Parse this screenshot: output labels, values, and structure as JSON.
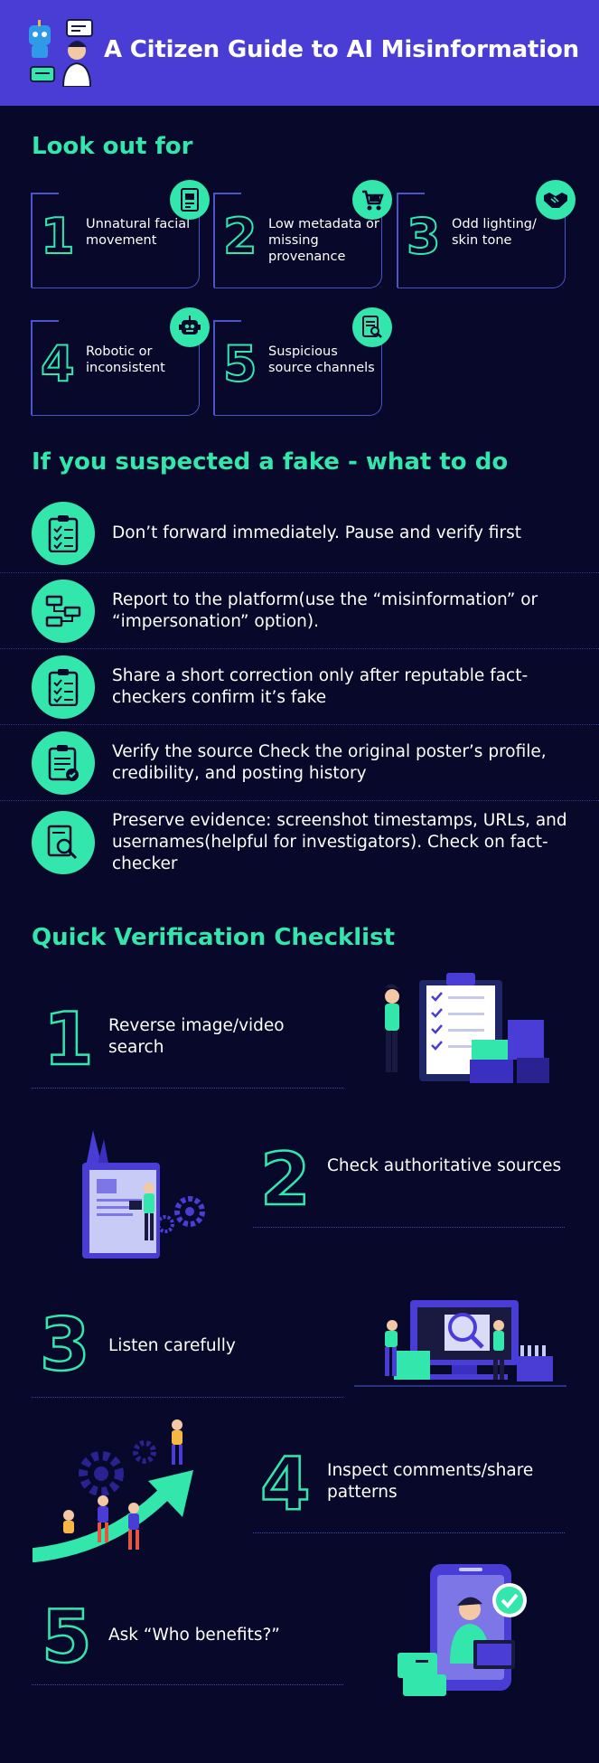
{
  "header": {
    "title": "A Citizen Guide to AI Misinformation"
  },
  "look_out": {
    "title": "Look out for",
    "cards": [
      {
        "num": "1",
        "label": "Unnatural facial movement",
        "icon": "video-document-icon"
      },
      {
        "num": "2",
        "label": "Low metadata or missing provenance",
        "icon": "cart-icon"
      },
      {
        "num": "3",
        "label": "Odd lighting/ skin tone",
        "icon": "handshake-icon"
      },
      {
        "num": "4",
        "label": "Robotic or inconsistent",
        "icon": "robot-icon"
      },
      {
        "num": "5",
        "label": "Suspicious source channels",
        "icon": "document-search-icon"
      }
    ]
  },
  "todo": {
    "title": "If you suspected a fake - what to do",
    "items": [
      {
        "text": "Don’t forward immediately. Pause and verify first",
        "icon": "clipboard-checklist-icon"
      },
      {
        "text": "Report to the platform(use the “misinformation” or “impersonation” option).",
        "icon": "flowchart-icon"
      },
      {
        "text": "Share a short correction only after reputable fact-checkers confirm it’s fake",
        "icon": "clipboard-checklist-icon"
      },
      {
        "text": "Verify the source Check the original poster’s profile, credibility, and posting history",
        "icon": "clipboard-verified-icon"
      },
      {
        "text": "Preserve evidence: screenshot timestamps, URLs, and usernames(helpful for investigators). Check on fact-checker",
        "icon": "magnifier-document-icon"
      }
    ]
  },
  "checklist": {
    "title": "Quick Verification Checklist",
    "items": [
      {
        "num": "1",
        "text": "Reverse image/video search"
      },
      {
        "num": "2",
        "text": "Check authoritative sources"
      },
      {
        "num": "3",
        "text": "Listen carefully"
      },
      {
        "num": "4",
        "text": "Inspect comments/share patterns"
      },
      {
        "num": "5",
        "text": "Ask “Who benefits?”"
      }
    ]
  },
  "colors": {
    "background": "#07082a",
    "header": "#4a3dd6",
    "accent": "#33e6ac",
    "card_border": "#4b55c8"
  }
}
